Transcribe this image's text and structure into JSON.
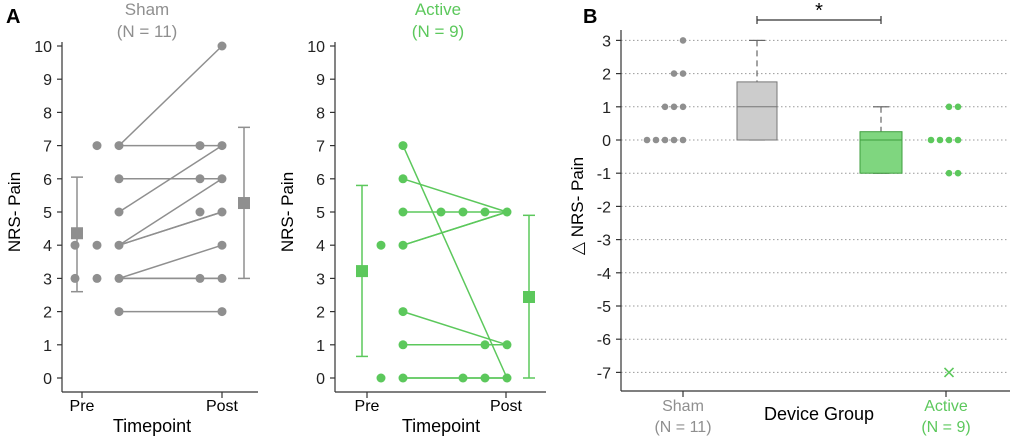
{
  "colors": {
    "sham": "#8f8f8f",
    "active": "#5cc85c",
    "axis": "#333333",
    "box_sham": "#cccccc",
    "box_active": "#7fd67f",
    "grid": "#9a9a9a"
  },
  "chart_data": [
    {
      "panel_label": "A",
      "type": "scatter",
      "subtype": "paired-line",
      "title": "Sham",
      "subtitle": "(N = 11)",
      "xlabel": "Timepoint",
      "ylabel": "NRS- Pain",
      "categories": [
        "Pre",
        "Post"
      ],
      "ylim": [
        0,
        10
      ],
      "yticks": [
        "0",
        "1",
        "2",
        "3",
        "4",
        "5",
        "6",
        "7",
        "8",
        "9",
        "10"
      ],
      "pairs": [
        {
          "pre": 7,
          "post": 10
        },
        {
          "pre": 7,
          "post": 7
        },
        {
          "pre": 6,
          "post": 6
        },
        {
          "pre": 5,
          "post": 7
        },
        {
          "pre": 4,
          "post": 6
        },
        {
          "pre": 4,
          "post": 5
        },
        {
          "pre": 4,
          "post": 5
        },
        {
          "pre": 3,
          "post": 4
        },
        {
          "pre": 3,
          "post": 3
        },
        {
          "pre": 3,
          "post": 3
        },
        {
          "pre": 2,
          "post": 2
        }
      ],
      "summary": {
        "pre": {
          "mean": 4.36,
          "lower": 2.6,
          "upper": 6.05
        },
        "post": {
          "mean": 5.27,
          "lower": 3.0,
          "upper": 7.55
        }
      }
    },
    {
      "panel_label": "",
      "type": "scatter",
      "subtype": "paired-line",
      "title": "Active",
      "subtitle": "(N = 9)",
      "xlabel": "Timepoint",
      "ylabel": "NRS- Pain",
      "categories": [
        "Pre",
        "Post"
      ],
      "ylim": [
        0,
        10
      ],
      "yticks": [
        "0",
        "1",
        "2",
        "3",
        "4",
        "5",
        "6",
        "7",
        "8",
        "9",
        "10"
      ],
      "pairs": [
        {
          "pre": 7,
          "post": 0
        },
        {
          "pre": 6,
          "post": 5
        },
        {
          "pre": 5,
          "post": 5
        },
        {
          "pre": 4,
          "post": 5
        },
        {
          "pre": 4,
          "post": 5
        },
        {
          "pre": 2,
          "post": 1
        },
        {
          "pre": 1,
          "post": 1
        },
        {
          "pre": 0,
          "post": 0
        },
        {
          "pre": 0,
          "post": 0
        }
      ],
      "summary": {
        "pre": {
          "mean": 3.22,
          "lower": 0.65,
          "upper": 5.8
        },
        "post": {
          "mean": 2.44,
          "lower": 0.0,
          "upper": 4.9
        }
      }
    },
    {
      "panel_label": "B",
      "type": "box",
      "xlabel": "Device Group",
      "ylabel": "△ NRS- Pain",
      "ylim": [
        -7,
        3
      ],
      "yticks": [
        "3",
        "2",
        "1",
        "0",
        "-1",
        "-2",
        "-3",
        "-4",
        "-5",
        "-6",
        "-7"
      ],
      "grid": true,
      "significance": "*",
      "groups": [
        {
          "name": "Sham",
          "n_label": "(N = 11)",
          "points": [
            3,
            2,
            2,
            1,
            1,
            1,
            0,
            0,
            0,
            0,
            0
          ],
          "box": {
            "q1": 0,
            "median": 1,
            "q3": 1.75,
            "whisker_low": 0,
            "whisker_high": 3
          },
          "outliers": []
        },
        {
          "name": "Active",
          "n_label": "(N = 9)",
          "points": [
            1,
            1,
            0,
            0,
            0,
            0,
            -1,
            -1
          ],
          "box": {
            "q1": -1,
            "median": 0,
            "q3": 0.25,
            "whisker_low": -1,
            "whisker_high": 1
          },
          "outliers": [
            -7
          ]
        }
      ]
    }
  ]
}
